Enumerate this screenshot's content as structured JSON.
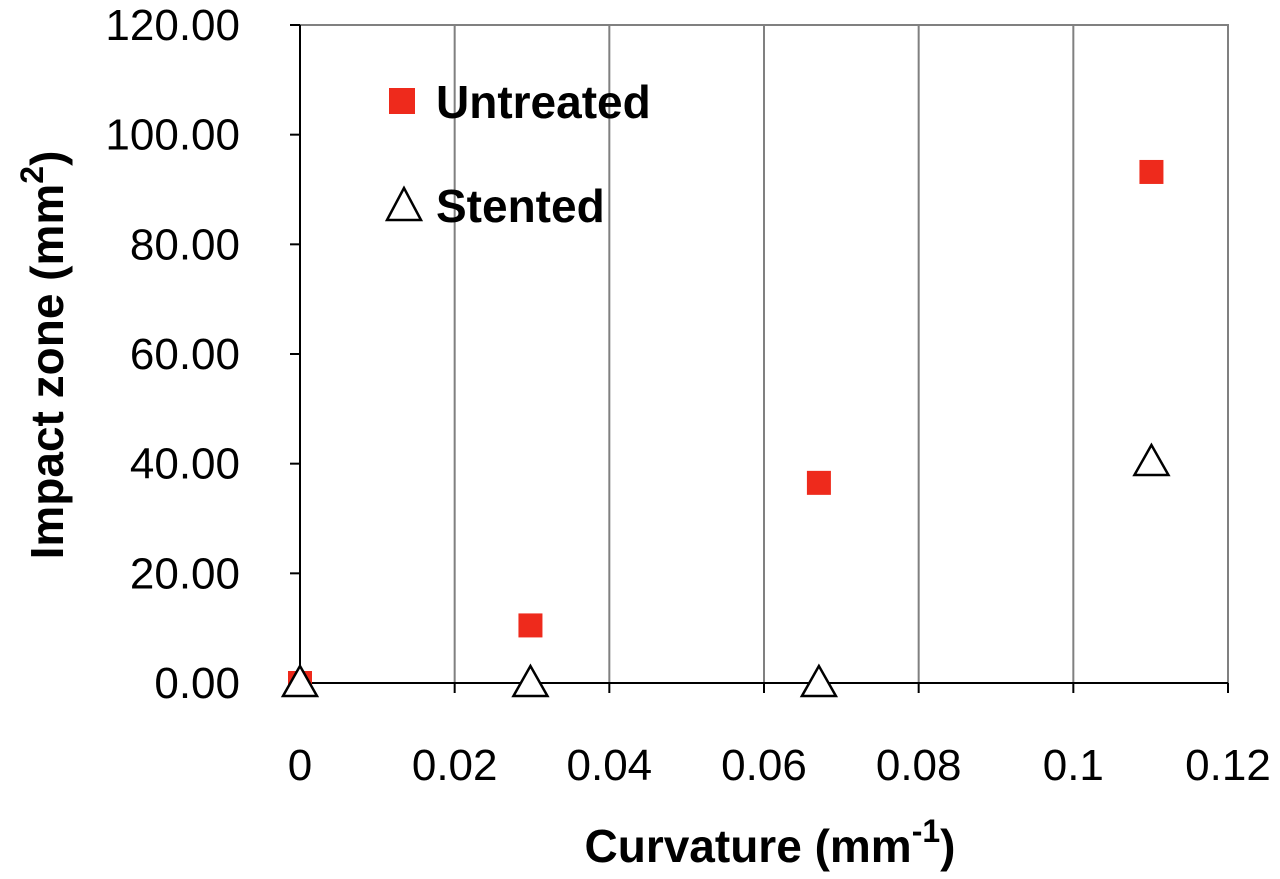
{
  "chart_data": {
    "type": "scatter",
    "xlabel": "Curvature (mm",
    "xlabel_sup": "-1",
    "xlabel_end": ")",
    "ylabel": "Impact zone (mm",
    "ylabel_sup": "2",
    "ylabel_end": ")",
    "xlim": [
      0,
      0.12
    ],
    "ylim": [
      0,
      120
    ],
    "x_ticks": [
      {
        "value": 0,
        "label": "0"
      },
      {
        "value": 0.02,
        "label": "0.02"
      },
      {
        "value": 0.04,
        "label": "0.04"
      },
      {
        "value": 0.06,
        "label": "0.06"
      },
      {
        "value": 0.08,
        "label": "0.08"
      },
      {
        "value": 0.1,
        "label": "0.1"
      },
      {
        "value": 0.12,
        "label": "0.12"
      }
    ],
    "y_ticks": [
      {
        "value": 0,
        "label": "0.00"
      },
      {
        "value": 20,
        "label": "20.00"
      },
      {
        "value": 40,
        "label": "40.00"
      },
      {
        "value": 60,
        "label": "60.00"
      },
      {
        "value": 80,
        "label": "80.00"
      },
      {
        "value": 100,
        "label": "100.00"
      },
      {
        "value": 120,
        "label": "120.00"
      }
    ],
    "grid": {
      "vertical": true,
      "horizontal": false
    },
    "legend_position": "top-left",
    "series": [
      {
        "name": "Untreated",
        "marker": "filled-square",
        "color": "#ee2a1c",
        "points": [
          {
            "x": 0,
            "y": 0
          },
          {
            "x": 0.0298,
            "y": 10.5
          },
          {
            "x": 0.0671,
            "y": 36.5
          },
          {
            "x": 0.1101,
            "y": 93.2
          }
        ]
      },
      {
        "name": "Stented",
        "marker": "open-triangle",
        "color": "#000000",
        "points": [
          {
            "x": 0,
            "y": 0
          },
          {
            "x": 0.0298,
            "y": 0
          },
          {
            "x": 0.0671,
            "y": 0
          },
          {
            "x": 0.1101,
            "y": 40.3
          }
        ]
      }
    ]
  }
}
